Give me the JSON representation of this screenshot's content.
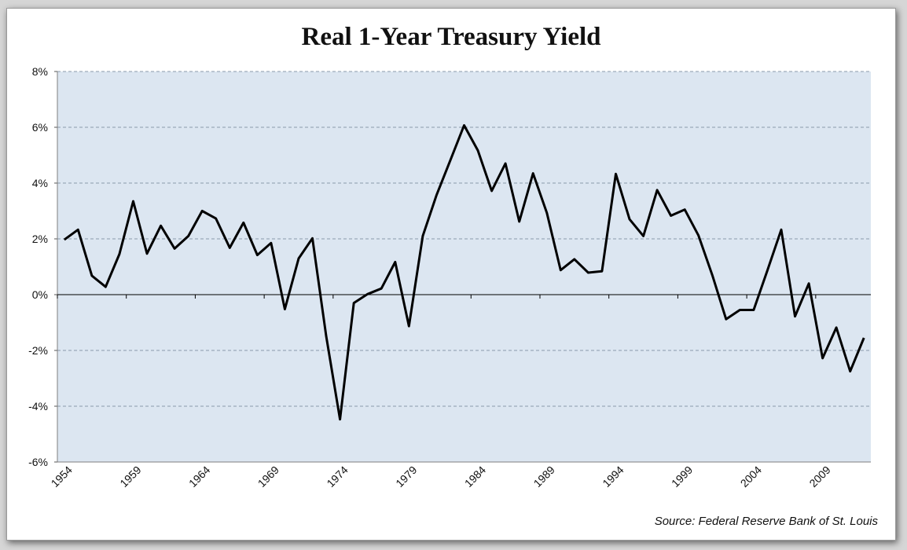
{
  "chart_data": {
    "type": "line",
    "title": "Real 1-Year Treasury Yield",
    "source": "Source: Federal Reserve Bank of St. Louis",
    "xlabel": "",
    "ylabel": "",
    "ylim": [
      -6,
      8
    ],
    "y_ticks": [
      {
        "value": 8,
        "label": "8%"
      },
      {
        "value": 6,
        "label": "6%"
      },
      {
        "value": 4,
        "label": "4%"
      },
      {
        "value": 2,
        "label": "2%"
      },
      {
        "value": 0,
        "label": "0%"
      },
      {
        "value": -2,
        "label": "-2%"
      },
      {
        "value": -4,
        "label": "-4%"
      },
      {
        "value": -6,
        "label": "-6%"
      }
    ],
    "x_tick_labels": [
      "1954",
      "1959",
      "1964",
      "1969",
      "1974",
      "1979",
      "1984",
      "1989",
      "1994",
      "1999",
      "2004",
      "2009"
    ],
    "grid": true,
    "plot_background": "#dce6f1",
    "line_color": "#000000",
    "series": [
      {
        "x": [
          1954,
          1955,
          1956,
          1957,
          1958,
          1959,
          1960,
          1961,
          1962,
          1963,
          1964,
          1965,
          1966,
          1967,
          1968,
          1969,
          1970,
          1971,
          1972,
          1973,
          1974,
          1975,
          1976,
          1977,
          1978,
          1979,
          1980,
          1981,
          1982,
          1983,
          1984,
          1985,
          1986,
          1987,
          1988,
          1989,
          1990,
          1991,
          1992,
          1993,
          1994,
          1995,
          1996,
          1997,
          1998,
          1999,
          2000,
          2001,
          2002,
          2003,
          2004,
          2005,
          2006,
          2007,
          2008,
          2009,
          2010,
          2011,
          2012
        ],
        "values": [
          1.97,
          2.33,
          0.68,
          0.28,
          1.45,
          3.35,
          1.47,
          2.47,
          1.65,
          2.1,
          3.0,
          2.73,
          1.68,
          2.58,
          1.42,
          1.85,
          -0.52,
          1.3,
          2.02,
          -1.5,
          -4.47,
          -0.3,
          0.02,
          0.22,
          1.17,
          -1.13,
          2.1,
          3.57,
          4.82,
          6.07,
          5.17,
          3.72,
          4.7,
          2.62,
          4.35,
          2.93,
          0.88,
          1.27,
          0.79,
          0.84,
          4.33,
          2.7,
          2.1,
          3.75,
          2.83,
          3.05,
          2.12,
          0.7,
          -0.88,
          -0.55,
          -0.55,
          0.87,
          2.33,
          -0.78,
          0.4,
          -2.28,
          -1.18,
          -2.75,
          -1.55
        ]
      }
    ]
  }
}
